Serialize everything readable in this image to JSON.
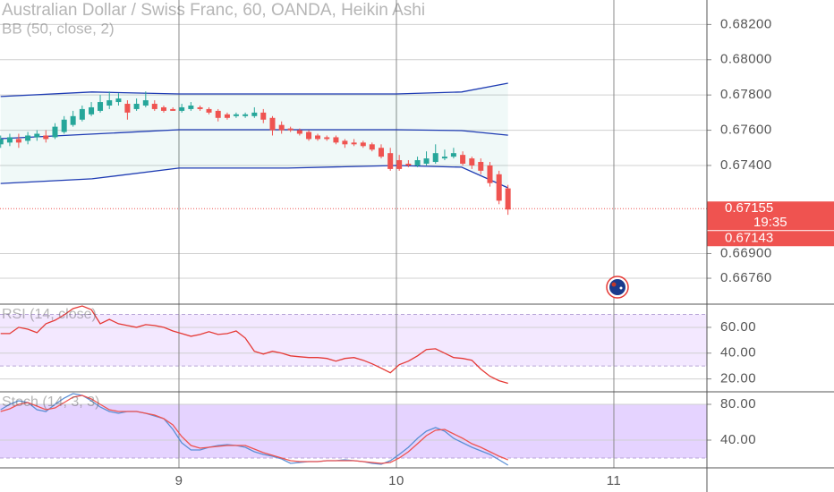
{
  "chart_data": [
    {
      "type": "candlestick",
      "title": "Australian Dollar / Swiss Franc, 60, OANDA, Heikin Ashi",
      "x": [
        8.18,
        8.222,
        8.263,
        8.305,
        8.347,
        8.388,
        8.43,
        8.472,
        8.513,
        8.555,
        8.597,
        8.638,
        8.68,
        8.722,
        8.763,
        8.805,
        8.847,
        8.888,
        8.93,
        8.972,
        9.013,
        9.055,
        9.097,
        9.138,
        9.18,
        9.222,
        9.263,
        9.305,
        9.347,
        9.388,
        9.43,
        9.472,
        9.513,
        9.555,
        9.597,
        9.638,
        9.68,
        9.722,
        9.763,
        9.805,
        9.847,
        9.888,
        9.93,
        9.972,
        10.013,
        10.055,
        10.097,
        10.138,
        10.18,
        10.222,
        10.263,
        10.305,
        10.347,
        10.388,
        10.43,
        10.472,
        10.513
      ],
      "open": [
        0.6752,
        0.6753,
        0.6755,
        0.6754,
        0.6756,
        0.6757,
        0.6756,
        0.6759,
        0.6763,
        0.6766,
        0.6769,
        0.6771,
        0.6774,
        0.6776,
        0.6775,
        0.6772,
        0.6774,
        0.6775,
        0.6773,
        0.6772,
        0.6771,
        0.6772,
        0.6773,
        0.6772,
        0.6771,
        0.6769,
        0.6768,
        0.6768,
        0.6768,
        0.677,
        0.6767,
        0.6763,
        0.6761,
        0.676,
        0.6759,
        0.6757,
        0.6756,
        0.6756,
        0.6754,
        0.6753,
        0.6753,
        0.6752,
        0.675,
        0.6747,
        0.6743,
        0.6741,
        0.674,
        0.6741,
        0.6742,
        0.6744,
        0.6745,
        0.6746,
        0.6744,
        0.6742,
        0.674,
        0.6735,
        0.6727
      ],
      "high": [
        0.6757,
        0.6758,
        0.6758,
        0.6759,
        0.676,
        0.676,
        0.6764,
        0.6768,
        0.6771,
        0.6774,
        0.6776,
        0.678,
        0.6782,
        0.6781,
        0.6777,
        0.6778,
        0.6782,
        0.6777,
        0.6774,
        0.6773,
        0.6775,
        0.6776,
        0.6774,
        0.6773,
        0.6772,
        0.677,
        0.677,
        0.677,
        0.6773,
        0.6772,
        0.6768,
        0.6765,
        0.6762,
        0.6761,
        0.676,
        0.6758,
        0.6757,
        0.6757,
        0.6755,
        0.6755,
        0.6754,
        0.6753,
        0.6752,
        0.675,
        0.6746,
        0.6743,
        0.6745,
        0.6748,
        0.6752,
        0.6749,
        0.675,
        0.6748,
        0.6745,
        0.6744,
        0.6742,
        0.6737,
        0.6729
      ],
      "low": [
        0.675,
        0.6751,
        0.675,
        0.6752,
        0.6754,
        0.6753,
        0.6755,
        0.6758,
        0.6762,
        0.6765,
        0.6768,
        0.677,
        0.6772,
        0.6774,
        0.6766,
        0.6771,
        0.6773,
        0.6771,
        0.677,
        0.6771,
        0.677,
        0.6771,
        0.6771,
        0.6769,
        0.6765,
        0.6766,
        0.6767,
        0.6767,
        0.6767,
        0.6764,
        0.6757,
        0.6758,
        0.6759,
        0.6757,
        0.6754,
        0.6754,
        0.6754,
        0.6752,
        0.675,
        0.6751,
        0.675,
        0.6748,
        0.6744,
        0.6737,
        0.6737,
        0.6739,
        0.6739,
        0.674,
        0.6741,
        0.6743,
        0.6744,
        0.674,
        0.6738,
        0.6735,
        0.6728,
        0.6718,
        0.6712
      ],
      "close": [
        0.6755,
        0.6756,
        0.6753,
        0.6757,
        0.6758,
        0.6755,
        0.6762,
        0.6766,
        0.6768,
        0.6772,
        0.6773,
        0.6776,
        0.6777,
        0.6778,
        0.677,
        0.6775,
        0.6777,
        0.6772,
        0.6771,
        0.6771,
        0.6773,
        0.6774,
        0.6772,
        0.677,
        0.6767,
        0.6767,
        0.6769,
        0.6769,
        0.677,
        0.6766,
        0.676,
        0.676,
        0.676,
        0.6758,
        0.6755,
        0.6755,
        0.6755,
        0.6753,
        0.6752,
        0.6752,
        0.6751,
        0.6749,
        0.6745,
        0.6738,
        0.6738,
        0.674,
        0.6743,
        0.6744,
        0.6747,
        0.6745,
        0.6747,
        0.6741,
        0.674,
        0.6737,
        0.673,
        0.672,
        0.6715
      ],
      "up_color": "#26a69a",
      "down_color": "#ef5350",
      "overlay": {
        "name": "BB (50, close, 2)",
        "color": "#1e3bb3",
        "fill": "rgba(38,166,154,0.07)",
        "x": [
          8.18,
          8.6,
          9.0,
          9.5,
          10.0,
          10.3,
          10.513
        ],
        "upper": [
          0.67791,
          0.67817,
          0.67806,
          0.67806,
          0.67806,
          0.67817,
          0.67867
        ],
        "basis": [
          0.67552,
          0.67578,
          0.67603,
          0.67603,
          0.67603,
          0.67598,
          0.67572
        ],
        "lower": [
          0.67298,
          0.67324,
          0.67385,
          0.67385,
          0.674,
          0.6739,
          0.67273
        ]
      },
      "xlim": [
        8.177,
        11.428
      ],
      "xticks": [
        9,
        10,
        11
      ],
      "ylim": [
        0.66613,
        0.68339
      ],
      "yticks": [
        {
          "value": 0.682,
          "label": "0.68200"
        },
        {
          "value": 0.68,
          "label": "0.68000"
        },
        {
          "value": 0.678,
          "label": "0.67800"
        },
        {
          "value": 0.676,
          "label": "0.67600"
        },
        {
          "value": 0.674,
          "label": "0.67400"
        },
        {
          "value": 0.669,
          "label": "0.66900"
        },
        {
          "value": 0.6676,
          "label": "0.66760"
        }
      ],
      "last_price": 0.67155,
      "countdown": "19:35",
      "bid_price": 0.67143,
      "grid": true
    },
    {
      "type": "line",
      "title": "RSI (14, close)",
      "series": [
        {
          "color": "#e53935",
          "values": [
            55.2,
            55.2,
            60,
            58.6,
            55.9,
            62.8,
            65.5,
            69.7,
            74.5,
            76.6,
            73.8,
            62.8,
            66.2,
            62.8,
            61.4,
            60,
            62.1,
            61.4,
            60,
            57.2,
            55.2,
            53.1,
            54.5,
            56.6,
            54.5,
            55.2,
            57.2,
            51.7,
            41.4,
            39.3,
            41.4,
            40,
            37.9,
            37.2,
            36.6,
            36.6,
            35.9,
            33.8,
            35.9,
            36.6,
            34.5,
            31.7,
            28.3,
            24.8,
            31,
            33.8,
            37.9,
            42.8,
            43.4,
            40,
            36.6,
            35.9,
            34.5,
            27.6,
            22.1,
            18.6,
            16.6
          ]
        }
      ],
      "band": [
        30,
        70
      ],
      "band_color": "rgba(200,150,255,0.22)",
      "ylim": [
        10,
        78
      ],
      "yticks": [
        {
          "value": 60,
          "label": "60.00"
        },
        {
          "value": 40,
          "label": "40.00"
        },
        {
          "value": 20,
          "label": "20.00"
        }
      ]
    },
    {
      "type": "line",
      "title": "Stoch (14, 3, 3)",
      "series": [
        {
          "color": "#5b8fd6",
          "values": [
            74,
            80,
            84,
            82,
            74,
            72,
            80,
            87,
            92,
            90,
            84,
            77,
            72,
            70,
            72,
            72,
            70,
            67,
            64,
            52,
            37,
            29,
            29,
            32,
            34,
            35,
            34,
            32,
            27,
            24,
            22,
            19,
            14,
            15,
            16,
            16,
            17,
            17,
            18,
            17,
            16,
            14,
            13,
            17,
            24,
            32,
            42,
            50,
            54,
            50,
            42,
            37,
            32,
            28,
            24,
            18,
            12
          ]
        },
        {
          "color": "#ef5350",
          "values": [
            72,
            75,
            80,
            82,
            78,
            74,
            76,
            82,
            88,
            90,
            86,
            80,
            74,
            72,
            72,
            72,
            70,
            68,
            64,
            57,
            44,
            34,
            31,
            32,
            33,
            34,
            34,
            34,
            30,
            26,
            23,
            20,
            17,
            16,
            16,
            16,
            17,
            17,
            17,
            17,
            16,
            15,
            14,
            15,
            20,
            27,
            36,
            45,
            51,
            52,
            47,
            42,
            36,
            32,
            27,
            22,
            18
          ]
        }
      ],
      "band": [
        20,
        80
      ],
      "band_color": "rgba(170,110,255,0.30)",
      "ylim": [
        9,
        94
      ],
      "yticks": [
        {
          "value": 80,
          "label": "80.00"
        },
        {
          "value": 40,
          "label": "40.00"
        }
      ]
    }
  ]
}
